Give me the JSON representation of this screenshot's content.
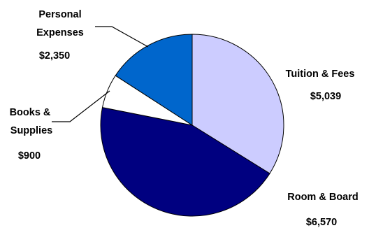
{
  "chart_data": {
    "type": "pie",
    "title": "",
    "slices": [
      {
        "label": "Tuition & Fees",
        "value": 5039,
        "value_label": "$5,039",
        "color": "#ccccff"
      },
      {
        "label": "Room & Board",
        "value": 6570,
        "value_label": "$6,570",
        "color": "#000080"
      },
      {
        "label": "Books & Supplies",
        "value": 900,
        "value_label": "$900",
        "color": "#ffffff"
      },
      {
        "label": "Personal Expenses",
        "value": 2350,
        "value_label": "$2,350",
        "color": "#0066cc"
      }
    ],
    "start_angle_deg": 0,
    "direction": "clockwise",
    "legend": "none"
  }
}
